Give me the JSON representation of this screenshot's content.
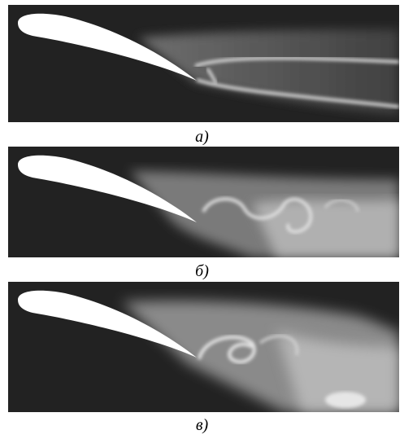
{
  "panels": [
    {
      "label": "а)"
    },
    {
      "label": "б)"
    },
    {
      "label": "в)"
    }
  ],
  "colors": {
    "background": "#222222",
    "airfoil": "#ffffff",
    "wake_dark": "#555555",
    "wake_mid": "#9a9a9a",
    "wake_light": "#cfcfcf",
    "page": "#ffffff"
  }
}
